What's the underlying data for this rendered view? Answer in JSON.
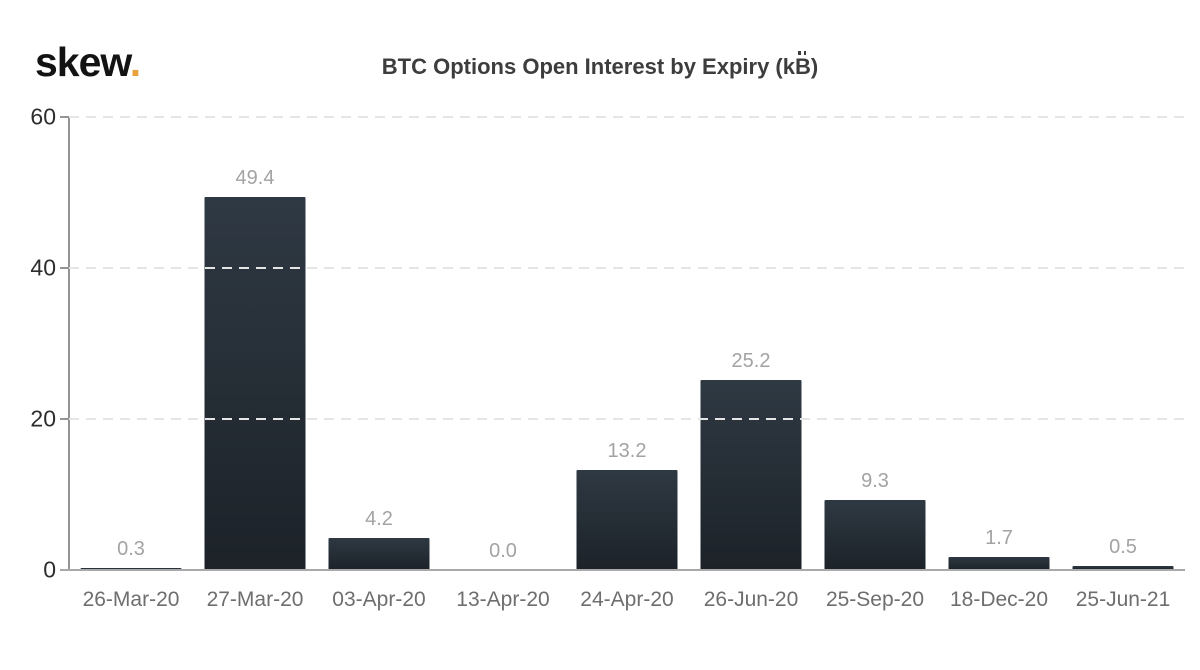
{
  "brand": {
    "name": "skew",
    "dot": ".",
    "dot_color": "#eaa33c"
  },
  "title": {
    "full": "BTC Options Open Interest by Expiry (k₿)",
    "prefix": "BTC Options Open Interest by Expiry (k",
    "bitcoin_glyph": "B",
    "suffix": ")"
  },
  "chart_data": {
    "type": "bar",
    "title": "BTC Options Open Interest by Expiry (k₿)",
    "categories": [
      "26-Mar-20",
      "27-Mar-20",
      "03-Apr-20",
      "13-Apr-20",
      "24-Apr-20",
      "26-Jun-20",
      "25-Sep-20",
      "18-Dec-20",
      "25-Jun-21"
    ],
    "values": [
      0.3,
      49.4,
      4.2,
      0.0,
      13.2,
      25.2,
      9.3,
      1.7,
      0.5
    ],
    "value_labels": [
      "0.3",
      "49.4",
      "4.2",
      "0.0",
      "13.2",
      "25.2",
      "9.3",
      "1.7",
      "0.5"
    ],
    "xlabel": "",
    "ylabel": "",
    "ylim": [
      0,
      60
    ],
    "yticks": [
      0,
      20,
      40,
      60
    ],
    "grid": "horizontal-dashed",
    "legend": "none",
    "bar_color_top": "#2f3943",
    "bar_color_bottom": "#1c2228"
  },
  "colors": {
    "background": "#ffffff",
    "title_text": "#3d3d3d",
    "y_label_text": "#2d2d2d",
    "x_label_text": "#6e6e6e",
    "value_label_text": "#a3a3a3",
    "axis_line": "#949494",
    "baseline": "#a9a9a9",
    "gridline": "#e5e5e5",
    "brand_dot": "#eaa33c"
  }
}
